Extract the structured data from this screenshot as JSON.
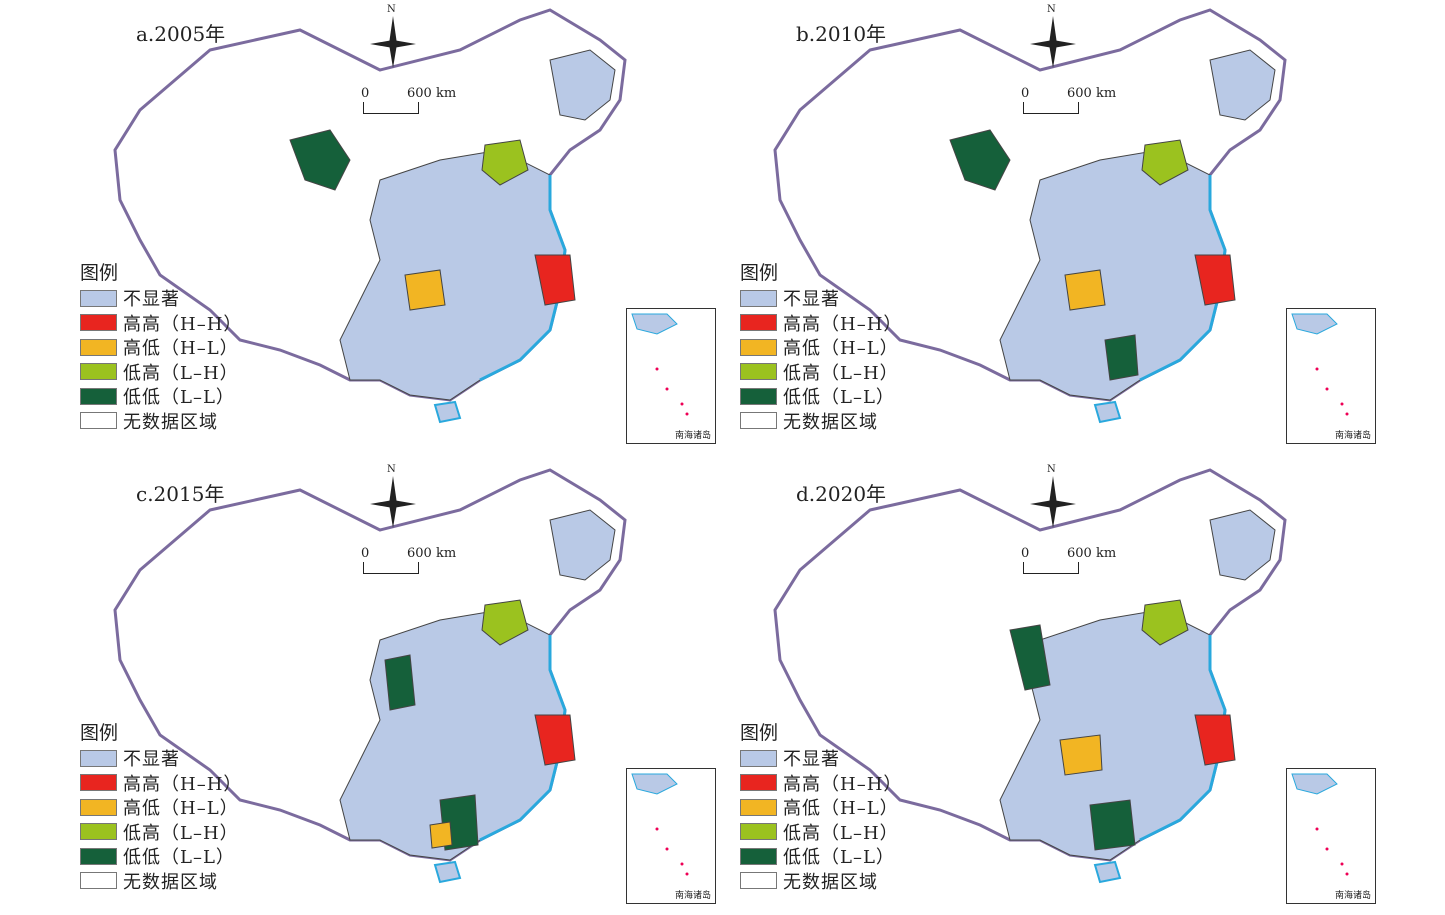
{
  "legend": {
    "title": "图例",
    "items": [
      {
        "label": "不显著",
        "color": "#b9c9e6"
      },
      {
        "label": "高高（H–H）",
        "color": "#e8251f"
      },
      {
        "label": "高低（H–L）",
        "color": "#f2b523"
      },
      {
        "label": "低高（L–H）",
        "color": "#9bc21f"
      },
      {
        "label": "低低（L–L）",
        "color": "#15603a"
      },
      {
        "label": "无数据区域",
        "color": "#ffffff"
      }
    ]
  },
  "north_label": "N",
  "scale": {
    "start": "0",
    "end": "600 km"
  },
  "inset_label": "南海诸岛",
  "panels": [
    {
      "title": "a.2005年"
    },
    {
      "title": "b.2010年"
    },
    {
      "title": "c.2015年"
    },
    {
      "title": "d.2020年"
    }
  ],
  "colors": {
    "border_outer": "#7b6b9e",
    "coast": "#29a8dd",
    "province_line": "#444444"
  }
}
